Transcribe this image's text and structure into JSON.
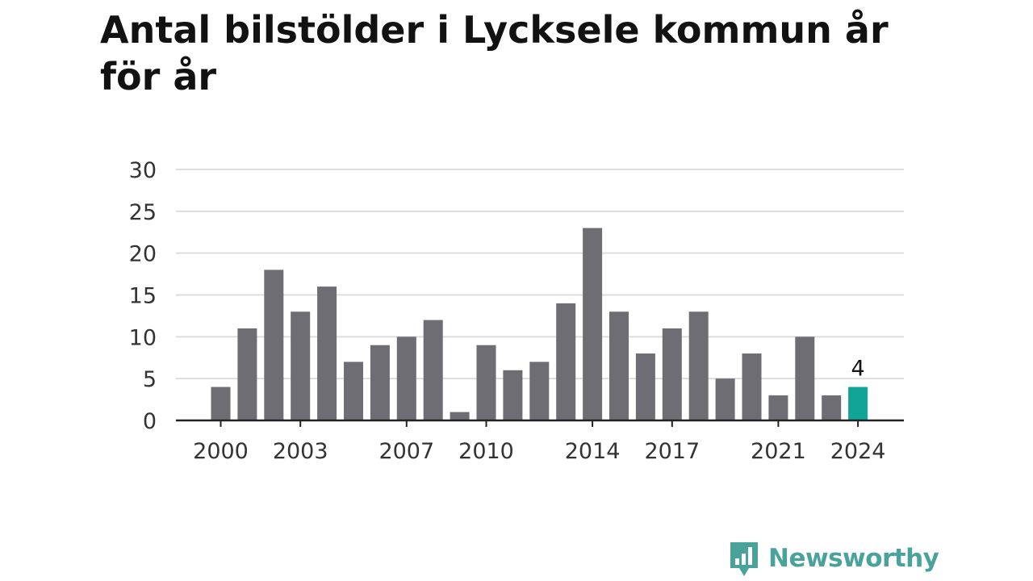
{
  "title": "Antal bilstölder i Lycksele kommun år för år",
  "logo": {
    "text": "Newsworthy",
    "icon": "bar-chart-speech-bubble-icon"
  },
  "colors": {
    "bar": "#6e6d73",
    "highlight": "#12a597",
    "grid": "#dddddd",
    "axis": "#222222",
    "brand": "#4aa39b"
  },
  "chart_data": {
    "type": "bar",
    "categories": [
      "2000",
      "2001",
      "2002",
      "2003",
      "2004",
      "2005",
      "2006",
      "2007",
      "2008",
      "2009",
      "2010",
      "2011",
      "2012",
      "2013",
      "2014",
      "2015",
      "2016",
      "2017",
      "2018",
      "2019",
      "2020",
      "2021",
      "2022",
      "2023",
      "2024"
    ],
    "values": [
      4,
      11,
      18,
      13,
      16,
      7,
      9,
      10,
      12,
      1,
      9,
      6,
      7,
      14,
      23,
      13,
      8,
      11,
      13,
      5,
      8,
      3,
      10,
      3,
      4
    ],
    "x_tick_labels": [
      "2000",
      "2003",
      "2007",
      "2010",
      "2014",
      "2017",
      "2021",
      "2024"
    ],
    "y_ticks": [
      0,
      5,
      10,
      15,
      20,
      25,
      30
    ],
    "ylim": [
      0,
      30
    ],
    "highlight_category": "2024",
    "data_labels": [
      {
        "category": "2024",
        "text": "4"
      }
    ],
    "grid": true,
    "title": "Antal bilstölder i Lycksele kommun år för år",
    "xlabel": "",
    "ylabel": ""
  }
}
